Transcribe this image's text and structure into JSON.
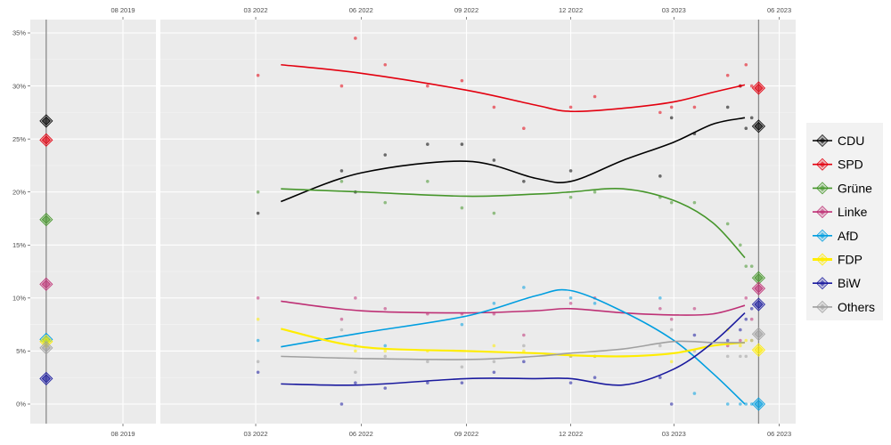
{
  "chart_data": {
    "type": "line",
    "title": "",
    "xlabel": "",
    "ylabel": "",
    "ylim": [
      -1.8,
      36.3
    ],
    "y_ticks": [
      "0%",
      "5%",
      "10%",
      "15%",
      "20%",
      "25%",
      "30%",
      "35%"
    ],
    "y_tick_values": [
      0,
      5,
      10,
      15,
      20,
      25,
      30,
      35
    ],
    "grid": true,
    "legend_placement": "right",
    "panels": [
      {
        "x_ticks": [
          {
            "label": "08 2019",
            "date": "2019-08-01"
          }
        ],
        "xlim": [
          "2019-05-12",
          "2019-10-22"
        ],
        "election_date": "2019-05-26"
      },
      {
        "x_ticks": [
          {
            "label": "03 2022",
            "date": "2022-03-01"
          },
          {
            "label": "06 2022",
            "date": "2022-06-01"
          },
          {
            "label": "09 2022",
            "date": "2022-09-01"
          },
          {
            "label": "12 2022",
            "date": "2022-12-01"
          },
          {
            "label": "03 2023",
            "date": "2023-03-01"
          },
          {
            "label": "06 2023",
            "date": "2023-06-01"
          }
        ],
        "xlim": [
          "2022-01-25",
          "2023-06-18"
        ],
        "election_date": "2023-05-14"
      }
    ],
    "trend_dates": [
      "2022-03-23",
      "2022-06-01",
      "2022-09-01",
      "2022-10-31",
      "2022-12-01",
      "2023-01-16",
      "2023-03-01",
      "2023-04-04",
      "2023-05-02"
    ],
    "poll_dates": [
      "2022-03-03",
      "2022-05-15",
      "2022-05-27",
      "2022-06-22",
      "2022-07-29",
      "2022-08-28",
      "2022-09-25",
      "2022-10-21",
      "2022-12-01",
      "2022-12-22",
      "2023-02-17",
      "2023-02-27",
      "2023-03-19",
      "2023-04-17",
      "2023-04-28",
      "2023-05-03",
      "2023-05-08"
    ],
    "series": [
      {
        "name": "CDU",
        "color": "#000000",
        "result_2019": 26.7,
        "result_2023": 26.2,
        "trend": [
          19.1,
          21.8,
          22.9,
          21.3,
          21.0,
          23.0,
          24.7,
          26.4,
          27.0
        ],
        "polls": [
          18,
          22,
          20,
          23.5,
          24.5,
          24.5,
          23,
          21,
          22,
          null,
          21.5,
          27,
          25.5,
          28,
          30,
          26,
          27
        ]
      },
      {
        "name": "SPD",
        "color": "#e3000f",
        "result_2019": 24.9,
        "result_2023": 29.8,
        "trend": [
          32.0,
          31.2,
          29.6,
          28.2,
          27.6,
          27.9,
          28.5,
          29.4,
          30.1
        ],
        "polls": [
          31,
          30,
          34.5,
          32,
          30,
          30.5,
          28,
          26,
          28,
          29,
          27.5,
          28,
          28,
          31,
          30,
          32,
          30
        ]
      },
      {
        "name": "Grüne",
        "color": "#46962b",
        "result_2019": 17.4,
        "result_2023": 11.9,
        "trend": [
          20.3,
          20.0,
          19.6,
          19.8,
          20.0,
          20.3,
          19.2,
          17.1,
          13.8
        ],
        "polls": [
          20,
          21,
          null,
          19,
          21,
          18.5,
          18,
          null,
          19.5,
          20,
          19.5,
          19,
          19,
          17,
          15,
          13,
          13
        ]
      },
      {
        "name": "Linke",
        "color": "#be3075",
        "result_2019": 11.3,
        "result_2023": 10.9,
        "trend": [
          9.7,
          8.8,
          8.6,
          8.8,
          9.0,
          8.6,
          8.4,
          8.5,
          9.3
        ],
        "polls": [
          10,
          8,
          10,
          9,
          8.5,
          8.5,
          8.5,
          6.5,
          9.5,
          10,
          9,
          8,
          9,
          5.5,
          6,
          10,
          8
        ]
      },
      {
        "name": "AfD",
        "color": "#009ee0",
        "result_2019": 6.1,
        "result_2023": 0,
        "trend": [
          5.4,
          6.7,
          8.3,
          10.2,
          10.7,
          8.7,
          6.0,
          2.9,
          0
        ],
        "polls": [
          6,
          null,
          5.5,
          5.5,
          null,
          7.5,
          9.5,
          11,
          10,
          9.5,
          10,
          null,
          1,
          0,
          0,
          0,
          0
        ]
      },
      {
        "name": "FDP",
        "color": "#ffed00",
        "result_2019": 5.9,
        "result_2023": 5.1,
        "trend": [
          7.1,
          5.4,
          5.0,
          4.8,
          4.6,
          4.5,
          4.8,
          5.5,
          5.8
        ],
        "polls": [
          8,
          null,
          5,
          5,
          5,
          null,
          5.5,
          5,
          4.5,
          4.5,
          null,
          4,
          null,
          7,
          5.5,
          6,
          6
        ]
      },
      {
        "name": "BiW",
        "color": "#1a1a9e",
        "result_2019": 2.4,
        "result_2023": 9.4,
        "trend": [
          1.9,
          1.8,
          2.4,
          2.4,
          2.4,
          1.8,
          3.3,
          5.8,
          8.6
        ],
        "polls": [
          3,
          0,
          2,
          1.5,
          2,
          2,
          3,
          4,
          2,
          2.5,
          2.5,
          0,
          6.5,
          6,
          7,
          8,
          9
        ]
      },
      {
        "name": "Others",
        "color": "#a0a0a0",
        "result_2019": 5.3,
        "result_2023": 6.6,
        "trend": [
          4.5,
          4.3,
          4.2,
          4.5,
          4.8,
          5.2,
          5.9,
          5.8,
          5.8
        ],
        "polls": [
          4,
          7,
          3,
          4.5,
          4,
          3.5,
          4,
          5.5,
          4.5,
          4.5,
          5.5,
          7,
          5,
          4.5,
          4.5,
          4.5,
          6
        ]
      }
    ]
  }
}
